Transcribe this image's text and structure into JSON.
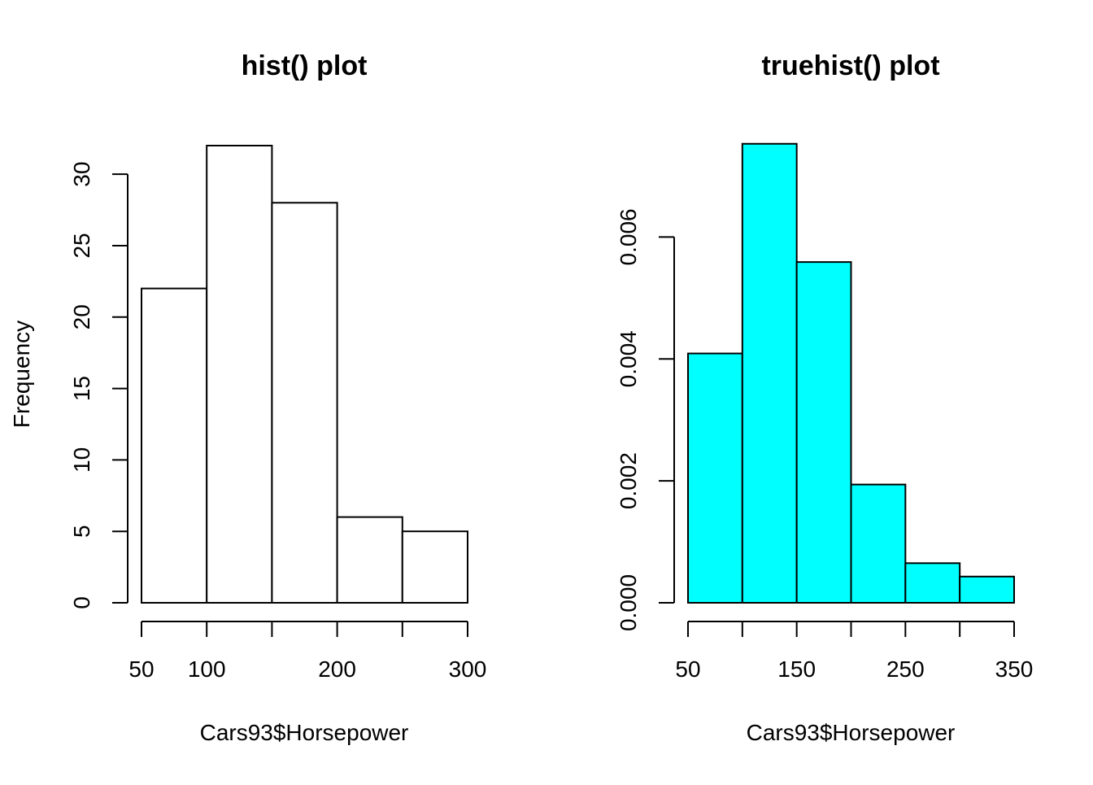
{
  "chart_data": [
    {
      "type": "bar",
      "title": "hist() plot",
      "xlabel": "Cars93$Horsepower",
      "ylabel": "Frequency",
      "bin_edges": [
        50,
        100,
        150,
        200,
        250,
        300
      ],
      "values": [
        22,
        32,
        28,
        6,
        5
      ],
      "xlim": [
        50,
        300
      ],
      "ylim": [
        0,
        32
      ],
      "x_ticks": [
        50,
        100,
        150,
        200,
        250,
        300
      ],
      "x_tick_labels": [
        "50",
        "100",
        "",
        "200",
        "",
        "300"
      ],
      "y_ticks": [
        0,
        5,
        10,
        15,
        20,
        25,
        30
      ],
      "y_tick_labels": [
        "0",
        "5",
        "10",
        "15",
        "20",
        "25",
        "30"
      ],
      "bar_fill": "#ffffff",
      "bar_stroke": "#000000",
      "grid": false
    },
    {
      "type": "bar",
      "title": "truehist() plot",
      "xlabel": "Cars93$Horsepower",
      "ylabel": "",
      "bin_edges": [
        50,
        100,
        150,
        200,
        250,
        300,
        350
      ],
      "values": [
        0.00409,
        0.00753,
        0.00559,
        0.00194,
        0.00065,
        0.00043
      ],
      "xlim": [
        50,
        350
      ],
      "ylim": [
        0,
        0.0075
      ],
      "x_ticks": [
        50,
        100,
        150,
        200,
        250,
        300,
        350
      ],
      "x_tick_labels": [
        "50",
        "",
        "150",
        "",
        "250",
        "",
        "350"
      ],
      "y_ticks": [
        0,
        0.002,
        0.004,
        0.006
      ],
      "y_tick_labels": [
        "0.000",
        "0.002",
        "0.004",
        "0.006"
      ],
      "bar_fill": "#00ffff",
      "bar_stroke": "#000000",
      "grid": false
    }
  ]
}
